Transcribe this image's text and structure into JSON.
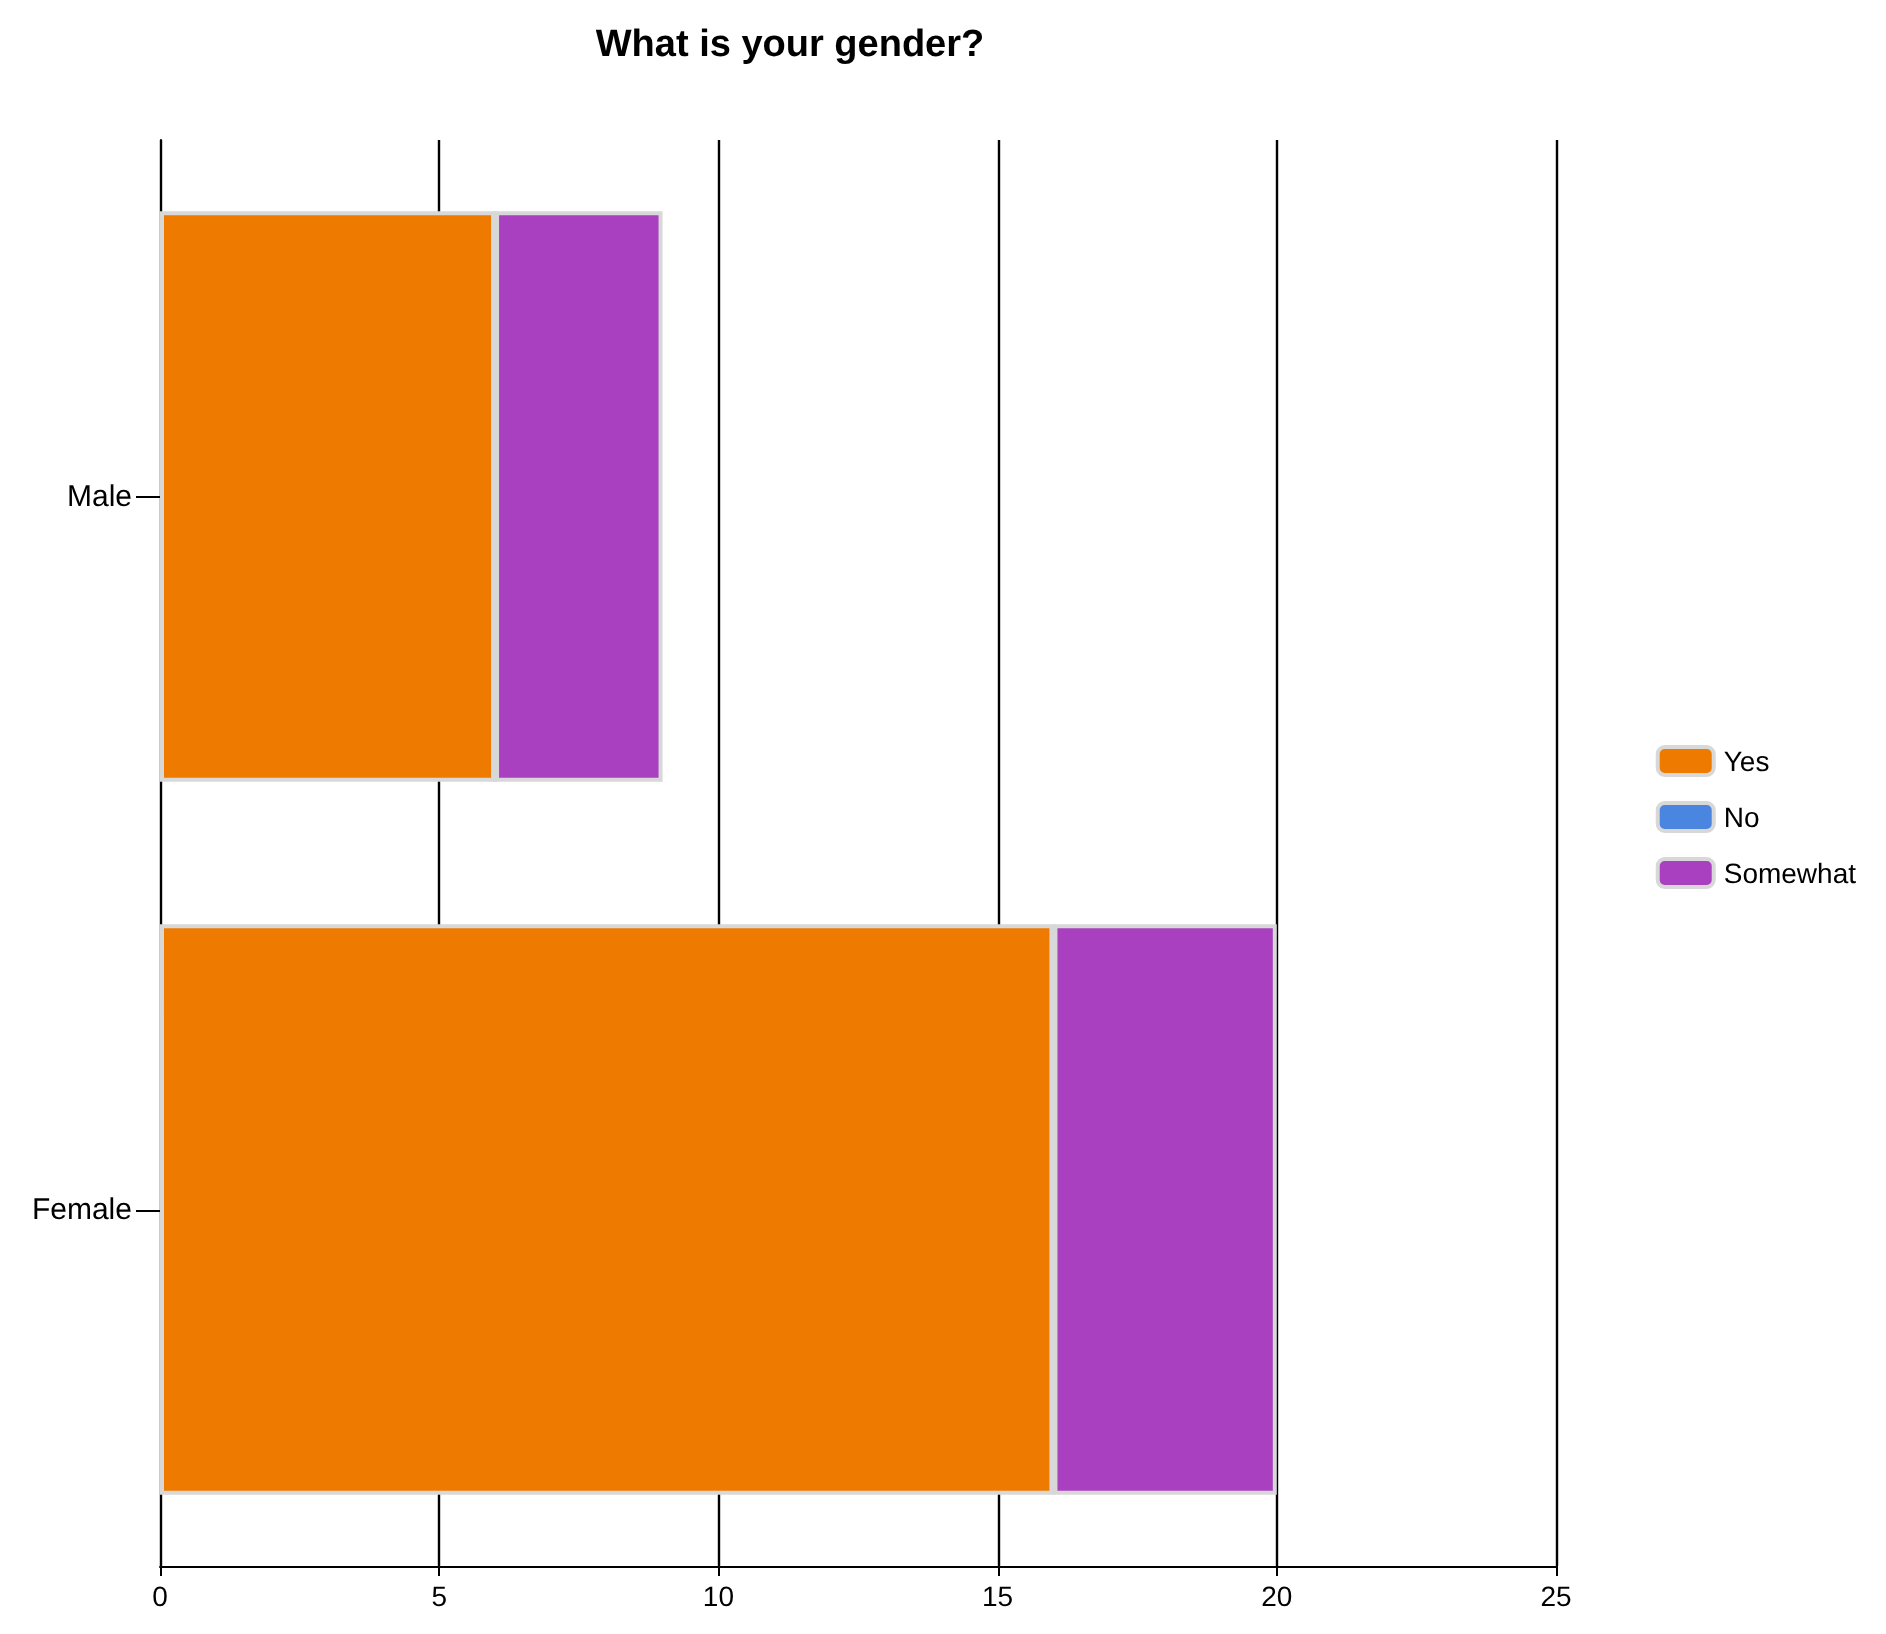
{
  "chart_data": {
    "type": "bar",
    "title": "What is your gender?",
    "orientation": "horizontal",
    "stacked": true,
    "categories": [
      "Male",
      "Female"
    ],
    "series": [
      {
        "name": "Yes",
        "color": "#ee7a00",
        "values": [
          6,
          16
        ]
      },
      {
        "name": "No",
        "color": "#4a86e0",
        "values": [
          0,
          0
        ]
      },
      {
        "name": "Somewhat",
        "color": "#a840c0",
        "values": [
          3,
          4
        ]
      }
    ],
    "xlim": [
      0,
      25
    ],
    "xticks": [
      0,
      5,
      10,
      15,
      20,
      25
    ],
    "grid": "x",
    "legend": "right"
  }
}
